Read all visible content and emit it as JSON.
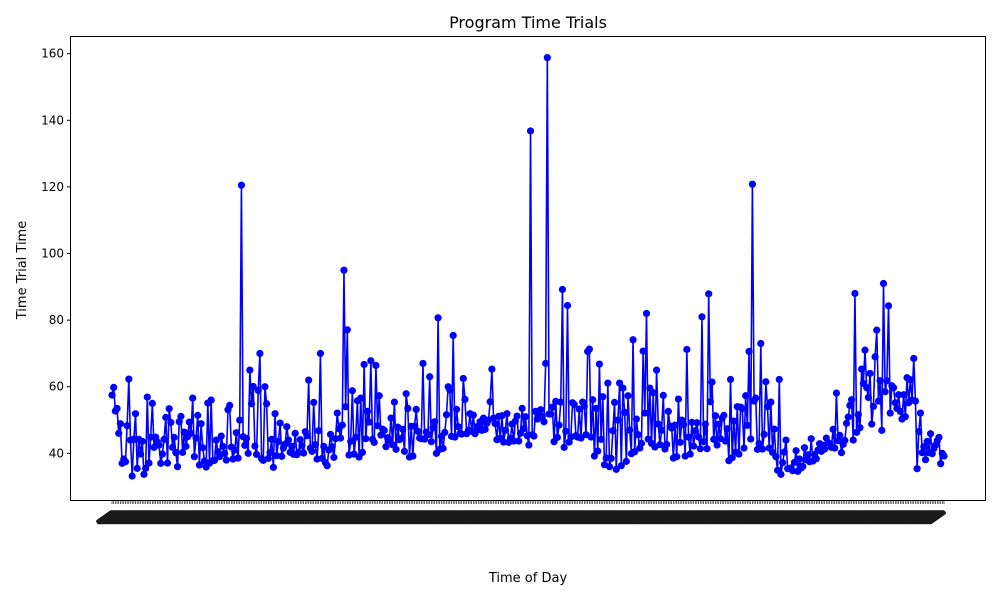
{
  "chart_data": {
    "type": "line",
    "title": "Program Time Trials",
    "xlabel": "Time of Day",
    "ylabel": "Time Trial Time",
    "ylim": [
      26,
      165
    ],
    "y_ticks": [
      40,
      60,
      80,
      100,
      120,
      140,
      160
    ],
    "grid": false,
    "legend": "none",
    "x_tick_labels": "dense rotated labels (illegible)",
    "series": [
      {
        "color": "#0000ff",
        "marker": "circle",
        "values": [
          57.5,
          59.8,
          52.7,
          53.5,
          46,
          48.9,
          37,
          38.3,
          37.5,
          48.3,
          62.3,
          44,
          33.2,
          44.2,
          51.9,
          35.5,
          44.2,
          39.8,
          43.6,
          33.7,
          35.5,
          56.9,
          37.1,
          44.8,
          55,
          41.8,
          44.9,
          43.4,
          42.5,
          37,
          39.8,
          44.2,
          50.8,
          37.1,
          53.4,
          49.3,
          41.8,
          44.8,
          40.2,
          36,
          49.5,
          51.1,
          40.3,
          46.4,
          42.1,
          45,
          49.4,
          46,
          56.6,
          39,
          44.6,
          51.4,
          36.5,
          48.9,
          41.7,
          37.7,
          35.9,
          55.1,
          37.1,
          56,
          37.8,
          37.9,
          44,
          40.5,
          39,
          45.2,
          42.1,
          40,
          38,
          53.1,
          54.4,
          41.9,
          38.3,
          41,
          46.2,
          38.6,
          50,
          120.5,
          45,
          42.4,
          44.5,
          40,
          65,
          54.9,
          60.1,
          42.2,
          39.7,
          58.9,
          70,
          38.4,
          37.9,
          60,
          54.9,
          38.5,
          40.2,
          44.2,
          35.8,
          51.9,
          39.3,
          43.6,
          49.1,
          39.1,
          41.6,
          42.8,
          48,
          44,
          40.3,
          42.1,
          39.7,
          46,
          39.6,
          40.3,
          44.1,
          42.3,
          40.1,
          46.5,
          45.3,
          62,
          41.6,
          40.6,
          55.3,
          42.6,
          38.3,
          46.8,
          70,
          38.5,
          42.1,
          37.2,
          36.3,
          41,
          45.7,
          42,
          38.8,
          44.4,
          52.1,
          47.4,
          44.6,
          48.5,
          95,
          54,
          77.1,
          39.5,
          43.6,
          58.8,
          39.8,
          44.8,
          55.8,
          38.9,
          56.6,
          40.3,
          66.7,
          44.4,
          52.6,
          49.4,
          67.8,
          44.2,
          43.3,
          66.4,
          48.3,
          57.3,
          45.5,
          47.3,
          46.9,
          42,
          44.7,
          43.9,
          50.6,
          42.6,
          55.4,
          41.2,
          47.9,
          44.1,
          44.5,
          47.2,
          40.6,
          57.9,
          53.5,
          38.9,
          48.1,
          39.2,
          48.2,
          53.2,
          46.6,
          44.6,
          44.4,
          67,
          44.3,
          46.4,
          45.6,
          63,
          43.5,
          47.7,
          49.5,
          40,
          80.7,
          41.2,
          45.1,
          41.5,
          46.3,
          51.6,
          60,
          59,
          45.1,
          75.4,
          44.9,
          53.2,
          48,
          46,
          45.8,
          62.5,
          56.2,
          45.9,
          46.9,
          51.9,
          46.6,
          51.5,
          45.9,
          48,
          47.2,
          49.5,
          46.9,
          50.6,
          47.2,
          49,
          50,
          55.5,
          65.3,
          50.6,
          48.9,
          44.1,
          51.1,
          44.5,
          51.3,
          43.4,
          46.9,
          51.9,
          43.3,
          44.6,
          48.8,
          43.7,
          49.7,
          51.2,
          43.7,
          46,
          53.5,
          47.4,
          51,
          45.3,
          42.5,
          136.8,
          45.6,
          45.2,
          52.6,
          50.3,
          51,
          53.1,
          51.1,
          49.5,
          67,
          158.8,
          51.8,
          51.8,
          53.9,
          43.5,
          55.6,
          44.8,
          48.5,
          55.4,
          89.2,
          41.8,
          46.6,
          84.4,
          43.4,
          44.9,
          55.2,
          54.7,
          45.3,
          44.9,
          53.3,
          44.6,
          55.4,
          54.2,
          45.6,
          70.6,
          71.3,
          44.9,
          56.1,
          39.2,
          53.5,
          40.7,
          66.8,
          44.2,
          57,
          36.6,
          38.6,
          61.1,
          36,
          38.5,
          46.8,
          55.3,
          35.2,
          50,
          61.1,
          36.3,
          59.6,
          52.3,
          37.6,
          57.3,
          47,
          39.9,
          74.1,
          40.5,
          50.3,
          45.6,
          41.6,
          43,
          70.7,
          52.1,
          82,
          44.3,
          59.6,
          43,
          58.2,
          41.9,
          65,
          48.8,
          42.6,
          46.9,
          57.4,
          41.3,
          42.7,
          52.6,
          48.2,
          47.6,
          38.6,
          48.5,
          39,
          56.3,
          43.3,
          50,
          48.6,
          39.2,
          71.2,
          44.9,
          39.8,
          49.3,
          42.2,
          46.8,
          49.2,
          44.9,
          41.4,
          81,
          43.5,
          48.8,
          41.4,
          87.9,
          55.5,
          61.4,
          44.2,
          51.3,
          42.5,
          48.8,
          44.4,
          50.6,
          51.4,
          43.7,
          47.4,
          37.8,
          62.2,
          38.7,
          49.7,
          40.4,
          54,
          39.8,
          53.9,
          53.4,
          41.6,
          57.3,
          48.4,
          70.6,
          44.3,
          120.8,
          55.7,
          56.6,
          41.2,
          42.9,
          73,
          41.3,
          45.7,
          61.5,
          54,
          41.6,
          55.4,
          40.3,
          47.3,
          39,
          34.9,
          62.2,
          33.7,
          37.2,
          40.4,
          44,
          35.4,
          35.5,
          35.6,
          34.8,
          37.3,
          40.8,
          34.6,
          38.3,
          35.6,
          36.1,
          41.7,
          38.1,
          39.6,
          37.5,
          44.4,
          37.7,
          39.6,
          38.4,
          41,
          42.9,
          40.6,
          42.4,
          41.3,
          44.6,
          43.2,
          42.9,
          41.8,
          47.2,
          41.6,
          58.1,
          43.8,
          45.4,
          40.2,
          42.7,
          43.9,
          49,
          50.9,
          54.4,
          56.1,
          44,
          88,
          46.3,
          51.6,
          47.7,
          65.3,
          61,
          71,
          59.7,
          56.8,
          64,
          48.8,
          54.1,
          69,
          77,
          55.7,
          61.8,
          46.9,
          91,
          58.5,
          61.8,
          84.3,
          52.1,
          60.3,
          59.7,
          55.2,
          53.5,
          57.6,
          52.6,
          50.3,
          57.6,
          51,
          62.7,
          55.2,
          62.1,
          56,
          68.5,
          55.7,
          35.4,
          46.5,
          52.1,
          40.2,
          42,
          38.1,
          43.6,
          40.2,
          45.9,
          39.9,
          41.5,
          42.5,
          43.8,
          44.8,
          36.9,
          40,
          39.2
        ]
      }
    ]
  }
}
